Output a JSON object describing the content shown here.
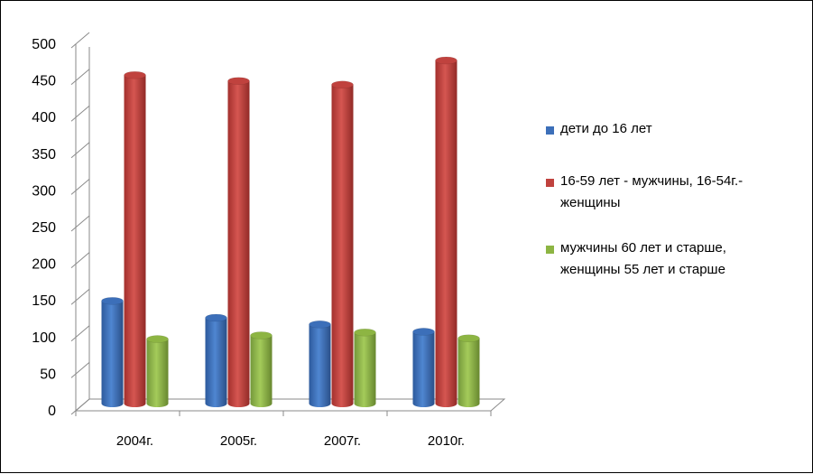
{
  "chart_data": {
    "type": "bar",
    "categories": [
      "2004г.",
      "2005г.",
      "2007г.",
      "2010г."
    ],
    "series": [
      {
        "name": "дети до 16 лет",
        "color": "#3c6fb9",
        "values": [
          140,
          117,
          108,
          98
        ]
      },
      {
        "name": "16-59 лет - мужчины, 16-54г.-женщины",
        "color": "#c0423e",
        "values": [
          448,
          440,
          435,
          468
        ]
      },
      {
        "name": "мужчины 60 лет и старше, женщины 55 лет и старше",
        "color": "#8db543",
        "values": [
          88,
          93,
          97,
          89
        ]
      }
    ],
    "yticks": [
      "0",
      "50",
      "100",
      "150",
      "200",
      "250",
      "300",
      "350",
      "400",
      "450",
      "500"
    ],
    "ylim": [
      0,
      500
    ],
    "grid": false,
    "legend_position": "right",
    "style": "3d-cylinder"
  }
}
